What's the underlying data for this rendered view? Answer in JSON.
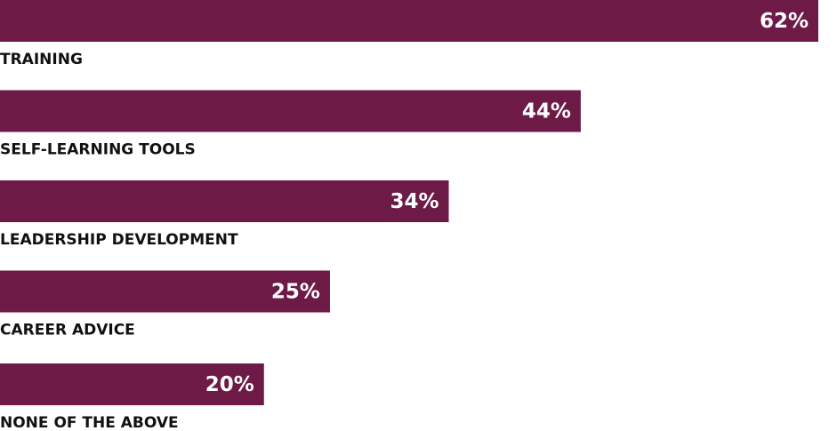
{
  "chart_data": {
    "type": "hbar",
    "categories": [
      "TRAINING",
      "SELF-LEARNING TOOLS",
      "LEADERSHIP DEVELOPMENT",
      "CAREER ADVICE",
      "NONE OF THE ABOVE"
    ],
    "values": [
      62,
      44,
      34,
      25,
      20
    ],
    "value_labels": [
      "62%",
      "44%",
      "34%",
      "25%",
      "20%"
    ],
    "color": "#6d1a47"
  }
}
